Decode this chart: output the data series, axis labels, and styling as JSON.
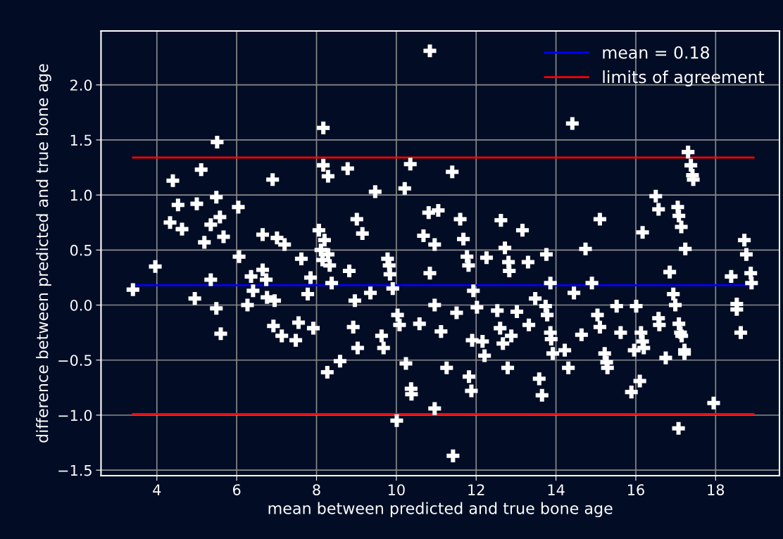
{
  "chart_data": {
    "type": "scatter",
    "xlabel": "mean between predicted and true bone age",
    "ylabel": "difference between predicted and true bone age",
    "xlim": [
      2.6,
      19.6
    ],
    "ylim": [
      -1.55,
      2.49
    ],
    "xticks": [
      4,
      6,
      8,
      10,
      12,
      14,
      16,
      18
    ],
    "yticks": [
      {
        "value": -1.5,
        "label": "−1.5"
      },
      {
        "value": -1.0,
        "label": "−1.0"
      },
      {
        "value": -0.5,
        "label": "−0.5"
      },
      {
        "value": 0.0,
        "label": "0.0"
      },
      {
        "value": 0.5,
        "label": "0.5"
      },
      {
        "value": 1.0,
        "label": "1.0"
      },
      {
        "value": 1.5,
        "label": "1.5"
      },
      {
        "value": 2.0,
        "label": "2.0"
      }
    ],
    "grid": true,
    "legend": "top right",
    "series": [
      {
        "marker": "cross",
        "color": "#ffffff",
        "x": [
          3.4,
          3.96,
          4.33,
          4.4,
          4.53,
          4.63,
          4.95,
          5.0,
          5.11,
          5.19,
          5.35,
          5.35,
          5.49,
          5.49,
          5.51,
          5.58,
          5.6,
          5.67,
          6.04,
          6.06,
          6.27,
          6.36,
          6.41,
          6.65,
          6.65,
          6.74,
          6.76,
          6.9,
          6.92,
          6.95,
          7.01,
          7.13,
          7.2,
          7.48,
          7.55,
          7.62,
          7.78,
          7.85,
          7.92,
          8.06,
          8.11,
          8.15,
          8.17,
          8.17,
          8.2,
          8.27,
          8.29,
          8.29,
          8.33,
          8.38,
          8.59,
          8.78,
          8.82,
          8.92,
          8.96,
          9.01,
          9.03,
          9.15,
          9.35,
          9.47,
          9.63,
          9.68,
          9.78,
          9.82,
          9.84,
          9.91,
          10.01,
          10.03,
          10.08,
          10.21,
          10.24,
          10.35,
          10.37,
          10.38,
          10.58,
          10.68,
          10.81,
          10.84,
          10.84,
          10.96,
          10.96,
          10.96,
          11.05,
          11.12,
          11.26,
          11.4,
          11.42,
          11.51,
          11.6,
          11.68,
          11.77,
          11.81,
          11.82,
          11.88,
          11.9,
          11.93,
          12.02,
          12.16,
          12.21,
          12.26,
          12.53,
          12.6,
          12.62,
          12.67,
          12.72,
          12.79,
          12.81,
          12.83,
          12.88,
          13.02,
          13.16,
          13.3,
          13.32,
          13.48,
          13.58,
          13.65,
          13.74,
          13.76,
          13.78,
          13.86,
          13.86,
          13.88,
          13.92,
          14.22,
          14.31,
          14.41,
          14.45,
          14.64,
          14.74,
          14.9,
          15.04,
          15.1,
          15.1,
          15.22,
          15.27,
          15.29,
          15.52,
          15.62,
          15.89,
          15.96,
          16.01,
          16.1,
          16.13,
          16.17,
          16.17,
          16.2,
          16.5,
          16.57,
          16.57,
          16.59,
          16.75,
          16.85,
          16.94,
          16.99,
          17.05,
          17.08,
          17.08,
          17.07,
          17.12,
          17.14,
          17.15,
          17.22,
          17.22,
          17.24,
          17.31,
          17.38,
          17.42,
          17.44,
          17.95,
          18.39,
          18.53,
          18.53,
          18.63,
          18.72,
          18.77,
          18.88,
          18.9
        ],
        "values": [
          0.14,
          0.35,
          0.75,
          1.13,
          0.91,
          0.69,
          0.06,
          0.92,
          1.23,
          0.57,
          0.23,
          0.73,
          -0.03,
          0.98,
          1.48,
          0.8,
          -0.26,
          0.62,
          0.89,
          0.44,
          0.0,
          0.26,
          0.13,
          0.64,
          0.32,
          0.23,
          0.07,
          1.14,
          -0.19,
          0.04,
          0.61,
          -0.28,
          0.55,
          -0.32,
          -0.16,
          0.42,
          0.1,
          0.25,
          -0.21,
          0.68,
          0.5,
          0.41,
          1.61,
          1.27,
          0.59,
          -0.61,
          1.17,
          0.46,
          0.36,
          0.2,
          -0.51,
          1.24,
          0.31,
          -0.2,
          0.04,
          0.78,
          -0.39,
          0.65,
          0.11,
          1.03,
          -0.28,
          -0.39,
          0.42,
          0.36,
          0.28,
          0.15,
          -1.05,
          -0.09,
          -0.18,
          1.06,
          -0.53,
          1.28,
          -0.76,
          -0.81,
          -0.17,
          0.63,
          0.84,
          2.31,
          0.29,
          0.55,
          0.0,
          -0.94,
          0.86,
          -0.24,
          -0.57,
          1.21,
          -1.37,
          -0.07,
          0.78,
          0.6,
          0.44,
          0.36,
          -0.65,
          -0.78,
          -0.32,
          0.13,
          -0.02,
          -0.33,
          -0.46,
          0.43,
          -0.05,
          -0.21,
          0.77,
          -0.35,
          0.52,
          -0.57,
          0.39,
          0.31,
          -0.28,
          -0.06,
          0.68,
          0.39,
          -0.18,
          0.06,
          -0.67,
          -0.82,
          -0.01,
          0.46,
          -0.09,
          0.2,
          -0.25,
          -0.31,
          -0.44,
          -0.41,
          -0.57,
          1.65,
          0.11,
          -0.27,
          0.51,
          0.2,
          -0.09,
          0.78,
          -0.2,
          -0.44,
          -0.52,
          -0.57,
          -0.01,
          -0.25,
          -0.79,
          -0.41,
          -0.01,
          -0.69,
          -0.25,
          0.66,
          -0.33,
          -0.39,
          0.99,
          0.87,
          -0.12,
          -0.18,
          -0.48,
          0.3,
          0.1,
          0.0,
          0.89,
          0.81,
          -0.17,
          -1.12,
          -0.25,
          0.71,
          -0.28,
          -0.41,
          -0.44,
          0.51,
          1.39,
          1.27,
          1.18,
          1.14,
          -0.89,
          0.26,
          0.01,
          -0.04,
          -0.25,
          0.59,
          0.46,
          0.29,
          0.2
        ]
      },
      {
        "type": "line",
        "name": "mean = 0.18",
        "color": "#0000ff",
        "x": [
          3.4,
          18.95
        ],
        "values": [
          0.18,
          0.18
        ]
      },
      {
        "type": "line",
        "name": "limits of agreement",
        "color": "#ff0000",
        "x": [
          3.4,
          18.95
        ],
        "values": [
          1.34,
          1.34
        ]
      },
      {
        "type": "line",
        "color": "#ff0000",
        "x": [
          3.4,
          18.95
        ],
        "values": [
          -0.99,
          -0.99
        ]
      }
    ]
  }
}
